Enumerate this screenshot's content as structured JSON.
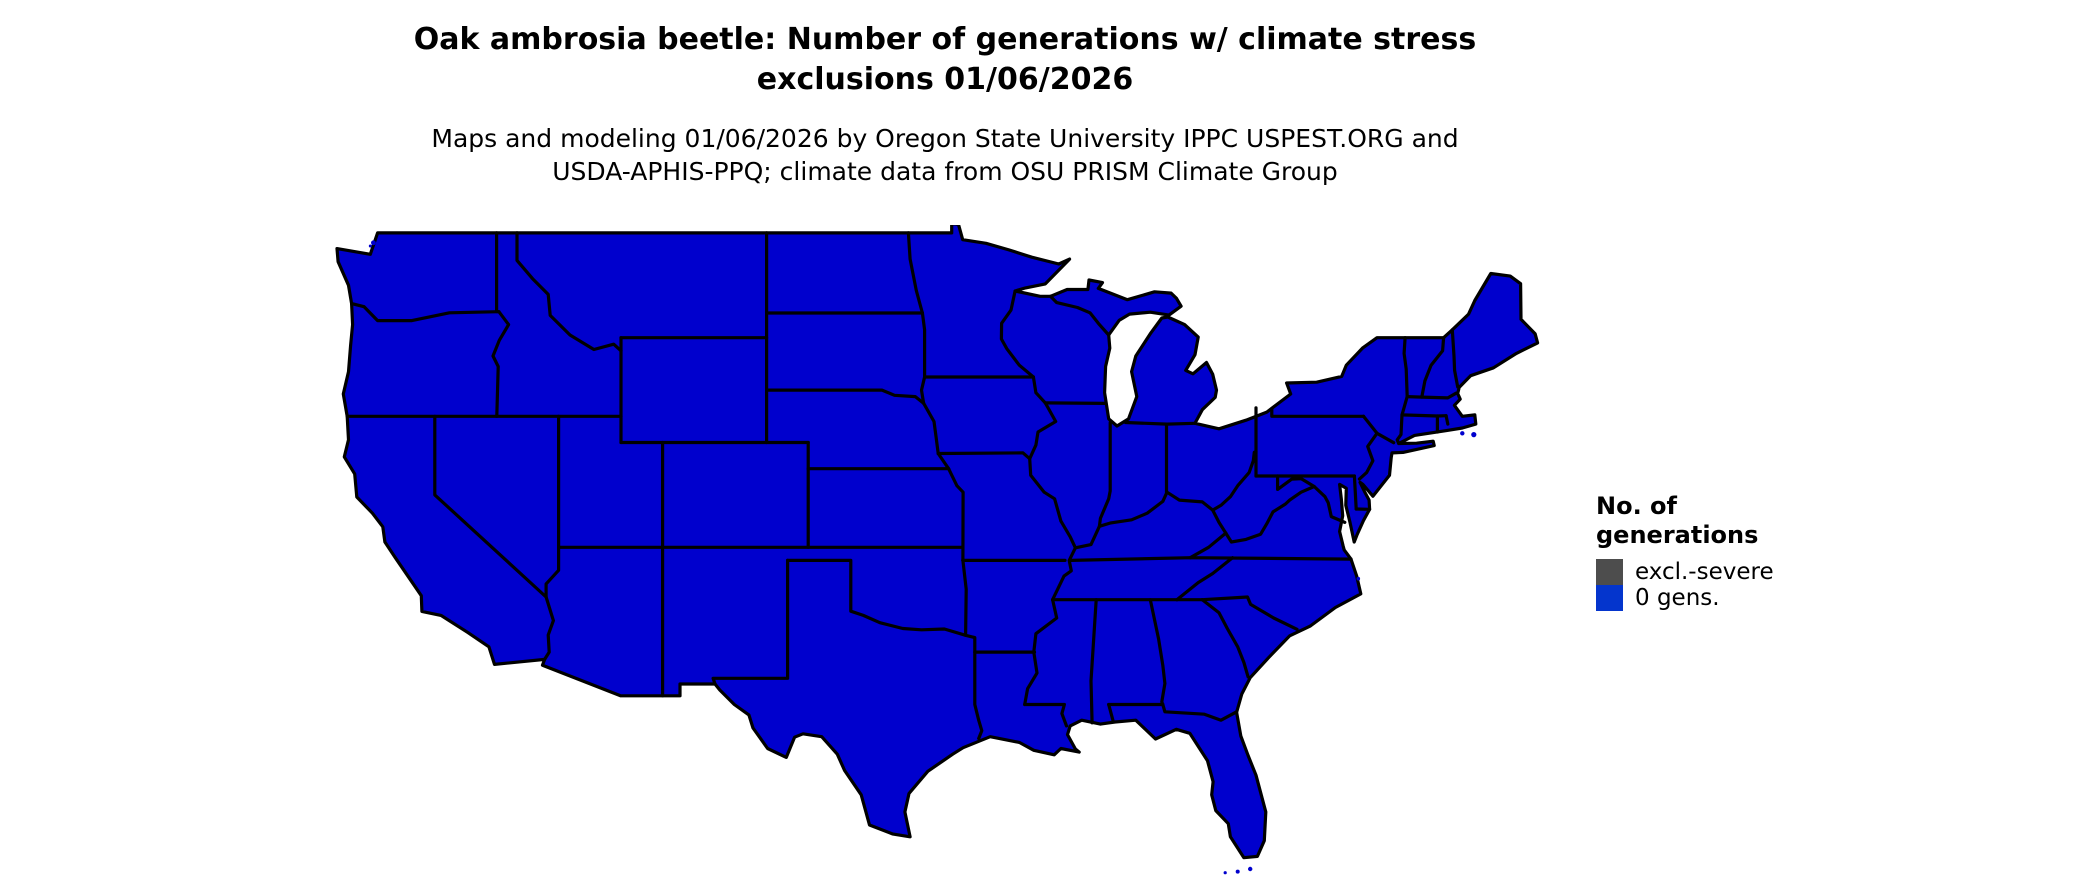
{
  "header": {
    "title_lines": [
      "Oak ambrosia beetle: Number of generations w/ climate stress",
      "exclusions 01/06/2026"
    ],
    "subtitle_lines": [
      "Maps and modeling 01/06/2026 by Oregon State University IPPC USPEST.ORG and",
      "USDA-APHIS-PPQ; climate data from OSU PRISM Climate Group"
    ]
  },
  "map": {
    "fill_color": "#0000CD",
    "border_color": "#000000",
    "water_background": "#FFFFFF"
  },
  "legend": {
    "title_lines": [
      "No. of",
      "generations"
    ],
    "items": [
      {
        "label": "excl.-severe",
        "color": "#4D4D4D"
      },
      {
        "label": "0 gens.",
        "color": "#0435CD"
      }
    ]
  }
}
